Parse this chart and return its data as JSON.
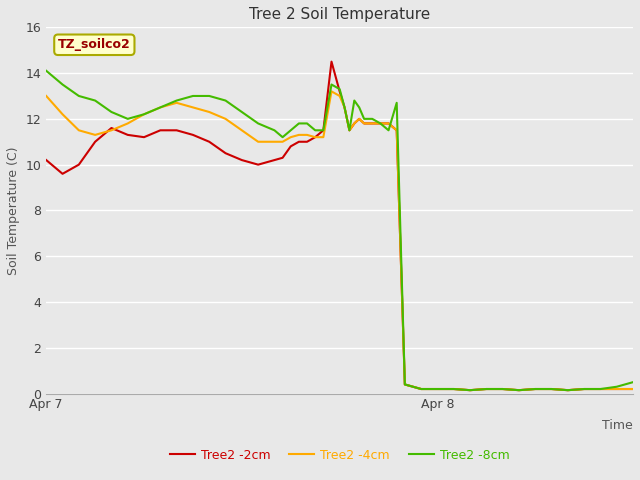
{
  "title": "Tree 2 Soil Temperature",
  "xlabel": "Time",
  "ylabel": "Soil Temperature (C)",
  "watermark": "TZ_soilco2",
  "ylim": [
    0,
    16
  ],
  "xlim": [
    0,
    36
  ],
  "background_color": "#e8e8e8",
  "plot_bg_color": "#e8e8e8",
  "grid_color": "#ffffff",
  "series": {
    "Tree2 -2cm": {
      "color": "#cc0000",
      "x": [
        0,
        1,
        2,
        3,
        4,
        5,
        6,
        7,
        8,
        9,
        10,
        11,
        12,
        13,
        14,
        14.5,
        15,
        15.5,
        16,
        16.5,
        17,
        17.5,
        18,
        18.3,
        18.6,
        18.9,
        19.2,
        19.5,
        20,
        20.5,
        21,
        21.5,
        22,
        22.5,
        23,
        24,
        25,
        26,
        27,
        28,
        29,
        30,
        31,
        32,
        33,
        34,
        35,
        36
      ],
      "y": [
        10.2,
        9.6,
        10.0,
        11.0,
        11.6,
        11.3,
        11.2,
        11.5,
        11.5,
        11.3,
        11.0,
        10.5,
        10.2,
        10.0,
        10.2,
        10.3,
        10.8,
        11.0,
        11.0,
        11.2,
        11.5,
        14.5,
        13.2,
        12.5,
        11.5,
        11.8,
        12.0,
        11.8,
        11.8,
        11.8,
        11.8,
        11.5,
        0.4,
        0.3,
        0.2,
        0.2,
        0.2,
        0.15,
        0.2,
        0.2,
        0.15,
        0.2,
        0.2,
        0.15,
        0.2,
        0.2,
        0.2,
        0.2
      ]
    },
    "Tree2 -4cm": {
      "color": "#ffaa00",
      "x": [
        0,
        1,
        2,
        3,
        4,
        5,
        6,
        7,
        8,
        9,
        10,
        11,
        12,
        13,
        14,
        14.5,
        15,
        15.5,
        16,
        16.5,
        17,
        17.5,
        18,
        18.3,
        18.6,
        18.9,
        19.2,
        19.5,
        20,
        20.5,
        21,
        21.5,
        22,
        22.5,
        23,
        24,
        25,
        26,
        27,
        28,
        29,
        30,
        31,
        32,
        33,
        34,
        35,
        36
      ],
      "y": [
        13.0,
        12.2,
        11.5,
        11.3,
        11.5,
        11.8,
        12.2,
        12.5,
        12.7,
        12.5,
        12.3,
        12.0,
        11.5,
        11.0,
        11.0,
        11.0,
        11.2,
        11.3,
        11.3,
        11.2,
        11.2,
        13.2,
        13.0,
        12.5,
        11.5,
        11.8,
        12.0,
        11.8,
        11.8,
        11.8,
        11.8,
        11.5,
        0.4,
        0.3,
        0.2,
        0.2,
        0.2,
        0.15,
        0.2,
        0.2,
        0.15,
        0.2,
        0.2,
        0.15,
        0.2,
        0.2,
        0.2,
        0.2
      ]
    },
    "Tree2 -8cm": {
      "color": "#44bb00",
      "x": [
        0,
        1,
        2,
        3,
        4,
        5,
        6,
        7,
        8,
        9,
        10,
        11,
        12,
        13,
        14,
        14.5,
        15,
        15.5,
        16,
        16.5,
        17,
        17.5,
        18,
        18.3,
        18.6,
        18.9,
        19.2,
        19.5,
        20,
        20.5,
        21,
        21.5,
        22,
        22.5,
        23,
        24,
        25,
        26,
        27,
        28,
        29,
        30,
        31,
        32,
        33,
        34,
        35,
        36
      ],
      "y": [
        14.1,
        13.5,
        13.0,
        12.8,
        12.3,
        12.0,
        12.2,
        12.5,
        12.8,
        13.0,
        13.0,
        12.8,
        12.3,
        11.8,
        11.5,
        11.2,
        11.5,
        11.8,
        11.8,
        11.5,
        11.5,
        13.5,
        13.3,
        12.5,
        11.5,
        12.8,
        12.5,
        12.0,
        12.0,
        11.8,
        11.5,
        12.7,
        0.4,
        0.3,
        0.2,
        0.2,
        0.2,
        0.15,
        0.2,
        0.2,
        0.15,
        0.2,
        0.2,
        0.15,
        0.2,
        0.2,
        0.3,
        0.5
      ]
    }
  },
  "xtick_positions": [
    0,
    24
  ],
  "xtick_labels": [
    "Apr 7",
    "Apr 8"
  ],
  "yticks": [
    0,
    2,
    4,
    6,
    8,
    10,
    12,
    14,
    16
  ],
  "line_width": 1.5,
  "title_fontsize": 11,
  "axis_label_fontsize": 9,
  "tick_fontsize": 9
}
